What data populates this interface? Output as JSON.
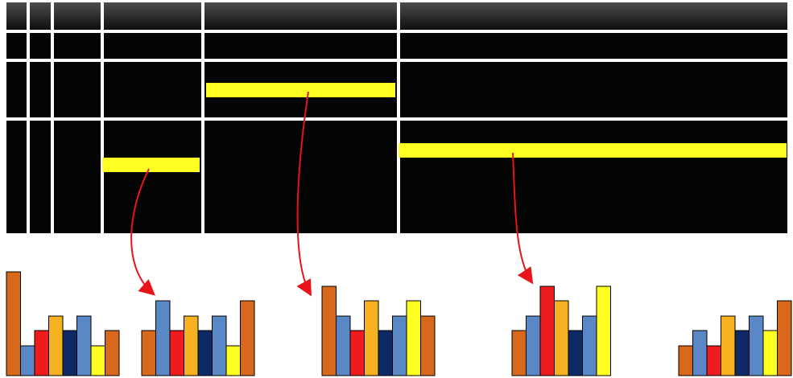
{
  "histograms": [
    {
      "values": [
        129,
        37,
        56,
        74,
        56,
        74,
        37,
        56
      ],
      "colors": [
        "#d8691c",
        "#5a88c6",
        "#ee1c1c",
        "#f6b120",
        "#0e2a66",
        "#5a88c6",
        "#ffff22",
        "#d8691c"
      ]
    },
    {
      "values": [
        56,
        93,
        56,
        74,
        56,
        74,
        37,
        93
      ],
      "colors": [
        "#d8691c",
        "#5a88c6",
        "#ee1c1c",
        "#f6b120",
        "#0e2a66",
        "#5a88c6",
        "#ffff22",
        "#d8691c"
      ]
    },
    {
      "values": [
        111,
        74,
        56,
        93,
        56,
        74,
        93,
        74
      ],
      "colors": [
        "#d8691c",
        "#5a88c6",
        "#ee1c1c",
        "#f6b120",
        "#0e2a66",
        "#5a88c6",
        "#ffff22",
        "#d8691c"
      ]
    },
    {
      "values": [
        56,
        74,
        111,
        93,
        56,
        74,
        111
      ],
      "colors": [
        "#d8691c",
        "#5a88c6",
        "#ee1c1c",
        "#f6b120",
        "#0e2a66",
        "#5a88c6",
        "#ffff22"
      ]
    },
    {
      "values": [
        37,
        56,
        37,
        74,
        56,
        74,
        56,
        93
      ],
      "colors": [
        "#d8691c",
        "#5a88c6",
        "#ee1c1c",
        "#f6b120",
        "#0e2a66",
        "#5a88c6",
        "#ffff22",
        "#d8691c"
      ]
    }
  ]
}
